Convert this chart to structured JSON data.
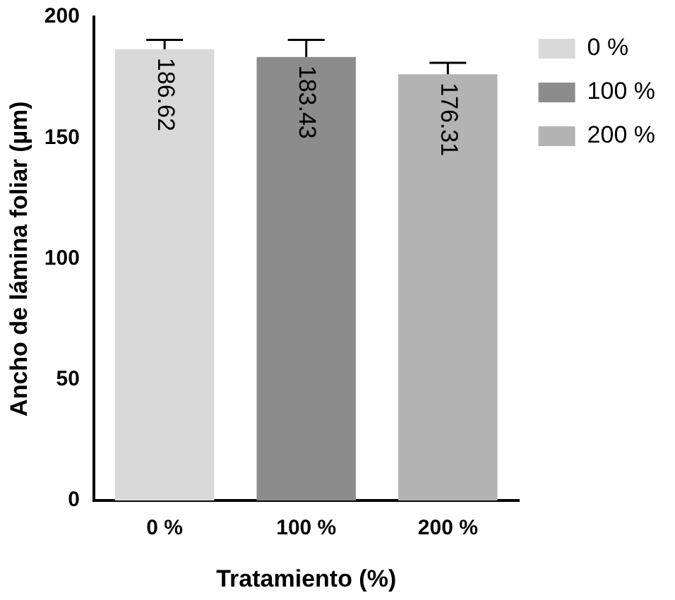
{
  "chart_data": {
    "type": "bar",
    "xlabel": "Tratamiento (%)",
    "ylabel": "Ancho de lámina foliar (µm)",
    "categories": [
      "0 %",
      "100 %",
      "200 %"
    ],
    "series": [
      {
        "name": "0 %",
        "color": "#d9d9d9",
        "values": [
          186.62,
          null,
          null
        ],
        "errors": [
          [
            186.62,
            190.5
          ],
          null,
          null
        ]
      },
      {
        "name": "100 %",
        "color": "#8c8c8c",
        "values": [
          null,
          183.43,
          null
        ],
        "errors": [
          null,
          [
            183.43,
            190.5
          ],
          null
        ]
      },
      {
        "name": "200 %",
        "color": "#b3b3b3",
        "values": [
          null,
          null,
          176.31
        ],
        "errors": [
          null,
          null,
          [
            176.31,
            181
          ]
        ]
      }
    ],
    "ylim": [
      0,
      200
    ],
    "yticks": [
      0,
      50,
      100,
      150,
      200
    ],
    "grid": false,
    "legend": "right",
    "data_labels": true
  }
}
